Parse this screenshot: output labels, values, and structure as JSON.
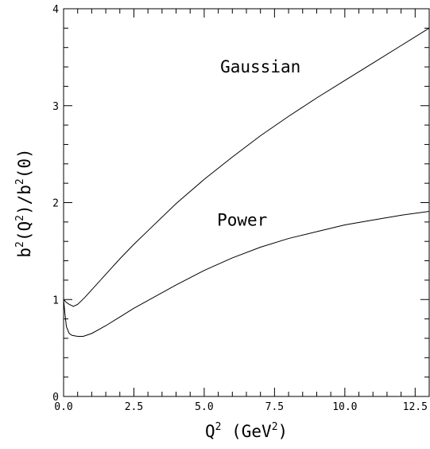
{
  "chart_data": {
    "type": "line",
    "title": "",
    "xlabel": "Q^2 (GeV^2)",
    "ylabel": "b^2(Q^2)/b^2(0)",
    "xlim": [
      0,
      13
    ],
    "ylim": [
      0,
      4
    ],
    "grid": false,
    "x_ticks": [
      "0.0",
      "2.5",
      "5.0",
      "7.5",
      "10.0",
      "12.5"
    ],
    "y_ticks": [
      "0",
      "1",
      "2",
      "3",
      "4"
    ],
    "series": [
      {
        "name": "Gaussian",
        "x": [
          0,
          0.1,
          0.2,
          0.35,
          0.5,
          0.75,
          1,
          1.5,
          2,
          2.5,
          3,
          4,
          5,
          6,
          7,
          8,
          9,
          10,
          11,
          12,
          13
        ],
        "y": [
          1.0,
          0.97,
          0.95,
          0.93,
          0.95,
          1.02,
          1.1,
          1.26,
          1.42,
          1.57,
          1.71,
          1.99,
          2.24,
          2.47,
          2.69,
          2.89,
          3.08,
          3.26,
          3.44,
          3.62,
          3.8
        ]
      },
      {
        "name": "Power",
        "x": [
          0,
          0.05,
          0.1,
          0.2,
          0.3,
          0.5,
          0.7,
          1,
          1.5,
          2,
          2.5,
          3,
          4,
          5,
          6,
          7,
          8,
          9,
          10,
          11,
          12,
          13
        ],
        "y": [
          1.0,
          0.85,
          0.72,
          0.65,
          0.63,
          0.62,
          0.62,
          0.65,
          0.73,
          0.82,
          0.91,
          0.99,
          1.15,
          1.3,
          1.43,
          1.54,
          1.63,
          1.7,
          1.77,
          1.82,
          1.87,
          1.91
        ]
      }
    ],
    "annotations": [
      {
        "text": "Gaussian",
        "x": 7.0,
        "y": 3.4
      },
      {
        "text": "Power",
        "x": 6.35,
        "y": 1.82
      }
    ]
  }
}
